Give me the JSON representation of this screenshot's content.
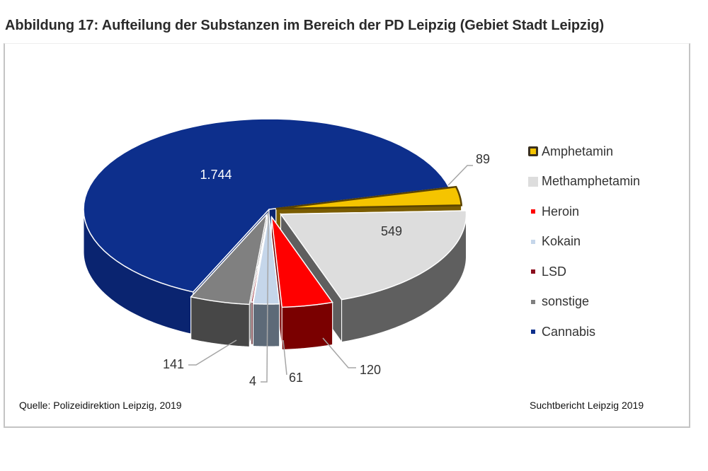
{
  "title": "Abbildung 17: Aufteilung der Substanzen im Bereich der PD Leipzig (Gebiet Stadt Leipzig)",
  "footer": {
    "source": "Quelle: Polizeidirektion Leipzig, 2019",
    "report": "Suchtbericht Leipzig 2019"
  },
  "chart_data": {
    "type": "pie",
    "style": "3d-exploded",
    "title": "Abbildung 17: Aufteilung der Substanzen im Bereich der PD Leipzig (Gebiet Stadt Leipzig)",
    "legend_position": "right",
    "slices": [
      {
        "label": "Amphetamin",
        "value": 89,
        "display": "89",
        "color": "#f5c400",
        "side": "#7a5c00",
        "edge": "#5a4300"
      },
      {
        "label": "Methamphetamin",
        "value": 549,
        "display": "549",
        "color": "#dddddd",
        "side": "#5f5f5f",
        "edge": "#ffffff"
      },
      {
        "label": "Heroin",
        "value": 120,
        "display": "120",
        "color": "#ff0000",
        "side": "#7a0000",
        "edge": "#ffffff"
      },
      {
        "label": "Kokain",
        "value": 61,
        "display": "61",
        "color": "#c5d6ea",
        "side": "#5d6a78",
        "edge": "#ffffff"
      },
      {
        "label": "LSD",
        "value": 4,
        "display": "4",
        "color": "#8b0e1e",
        "side": "#4a0610",
        "edge": "#ffffff"
      },
      {
        "label": "sonstige",
        "value": 141,
        "display": "141",
        "color": "#808080",
        "side": "#474747",
        "edge": "#ffffff"
      },
      {
        "label": "Cannabis",
        "value": 1744,
        "display": "1.744",
        "color": "#0d2f8c",
        "side": "#0a2470",
        "edge": "#ffffff"
      }
    ]
  }
}
